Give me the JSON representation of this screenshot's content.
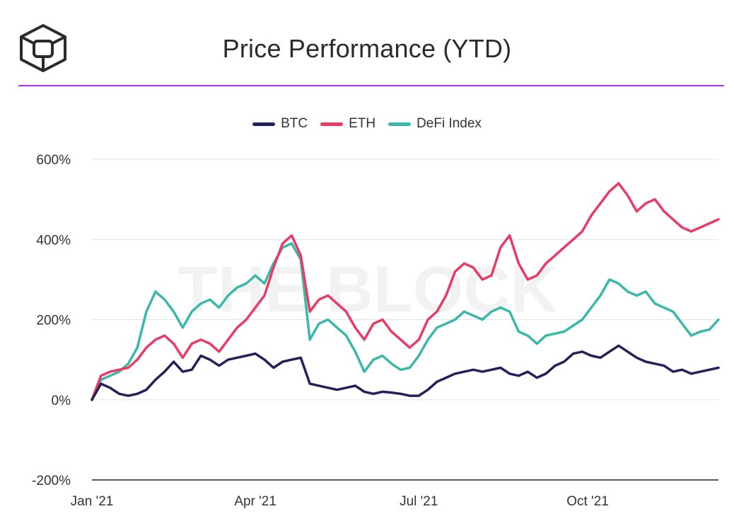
{
  "header": {
    "title": "Price Performance (YTD)",
    "logo": "the-block-cube-logo",
    "watermark": "THE BLOCK",
    "accent_color": "#b02fe6"
  },
  "chart_data": {
    "type": "line",
    "title": "Price Performance (YTD)",
    "xlabel": "",
    "ylabel": "",
    "ylim": [
      -200,
      600
    ],
    "yticks": [
      600,
      400,
      200,
      0,
      -200
    ],
    "ytick_labels": [
      "600%",
      "400%",
      "200%",
      "0%",
      "-200%"
    ],
    "xlim": [
      0,
      345
    ],
    "xticks": [
      0,
      90,
      180,
      273
    ],
    "xtick_labels": [
      "Jan '21",
      "Apr '21",
      "Jul '21",
      "Oct '21"
    ],
    "legend_position": "top-center",
    "series": [
      {
        "name": "BTC",
        "color": "#24205a",
        "x": [
          0,
          5,
          10,
          15,
          20,
          25,
          30,
          35,
          40,
          45,
          50,
          55,
          60,
          65,
          70,
          75,
          80,
          85,
          90,
          95,
          100,
          105,
          110,
          115,
          120,
          125,
          130,
          135,
          140,
          145,
          150,
          155,
          160,
          165,
          170,
          175,
          180,
          185,
          190,
          195,
          200,
          205,
          210,
          215,
          220,
          225,
          230,
          235,
          240,
          245,
          250,
          255,
          260,
          265,
          270,
          275,
          280,
          285,
          290,
          295,
          300,
          305,
          310,
          315,
          320,
          325,
          330,
          335,
          340,
          345
        ],
        "values": [
          0,
          40,
          30,
          15,
          10,
          15,
          25,
          50,
          70,
          95,
          70,
          75,
          110,
          100,
          85,
          100,
          105,
          110,
          115,
          100,
          80,
          95,
          100,
          105,
          40,
          35,
          30,
          25,
          30,
          35,
          20,
          15,
          20,
          18,
          15,
          10,
          10,
          25,
          45,
          55,
          65,
          70,
          75,
          70,
          75,
          80,
          65,
          60,
          70,
          55,
          65,
          85,
          95,
          115,
          120,
          110,
          105,
          120,
          135,
          120,
          105,
          95,
          90,
          85,
          70,
          75,
          65,
          70,
          75,
          80
        ]
      },
      {
        "name": "ETH",
        "color": "#ea3b64",
        "x": [
          0,
          5,
          10,
          15,
          20,
          25,
          30,
          35,
          40,
          45,
          50,
          55,
          60,
          65,
          70,
          75,
          80,
          85,
          90,
          95,
          100,
          105,
          110,
          115,
          120,
          125,
          130,
          135,
          140,
          145,
          150,
          155,
          160,
          165,
          170,
          175,
          180,
          185,
          190,
          195,
          200,
          205,
          210,
          215,
          220,
          225,
          230,
          235,
          240,
          245,
          250,
          255,
          260,
          265,
          270,
          275,
          280,
          285,
          290,
          295,
          300,
          305,
          310,
          315,
          320,
          325,
          330,
          335,
          340,
          345
        ],
        "values": [
          0,
          60,
          70,
          75,
          80,
          100,
          130,
          150,
          160,
          140,
          105,
          140,
          150,
          140,
          120,
          150,
          180,
          200,
          230,
          260,
          330,
          390,
          410,
          360,
          220,
          250,
          260,
          240,
          220,
          180,
          150,
          190,
          200,
          170,
          150,
          130,
          150,
          200,
          220,
          260,
          320,
          340,
          330,
          300,
          310,
          380,
          410,
          340,
          300,
          310,
          340,
          360,
          380,
          400,
          420,
          460,
          490,
          520,
          540,
          510,
          470,
          490,
          500,
          470,
          450,
          430,
          420,
          430,
          440,
          450
        ]
      },
      {
        "name": "DeFi Index",
        "color": "#3ab8aa",
        "x": [
          0,
          5,
          10,
          15,
          20,
          25,
          30,
          35,
          40,
          45,
          50,
          55,
          60,
          65,
          70,
          75,
          80,
          85,
          90,
          95,
          100,
          105,
          110,
          115,
          120,
          125,
          130,
          135,
          140,
          145,
          150,
          155,
          160,
          165,
          170,
          175,
          180,
          185,
          190,
          195,
          200,
          205,
          210,
          215,
          220,
          225,
          230,
          235,
          240,
          245,
          250,
          255,
          260,
          265,
          270,
          275,
          280,
          285,
          290,
          295,
          300,
          305,
          310,
          315,
          320,
          325,
          330,
          335,
          340,
          345
        ],
        "values": [
          0,
          50,
          60,
          70,
          90,
          130,
          220,
          270,
          250,
          220,
          180,
          220,
          240,
          250,
          230,
          260,
          280,
          290,
          310,
          290,
          340,
          380,
          390,
          350,
          150,
          190,
          200,
          180,
          160,
          120,
          70,
          100,
          110,
          90,
          75,
          80,
          110,
          150,
          180,
          190,
          200,
          220,
          210,
          200,
          220,
          230,
          220,
          170,
          160,
          140,
          160,
          165,
          170,
          185,
          200,
          230,
          260,
          300,
          290,
          270,
          260,
          270,
          240,
          230,
          220,
          190,
          160,
          170,
          175,
          200
        ]
      }
    ]
  }
}
